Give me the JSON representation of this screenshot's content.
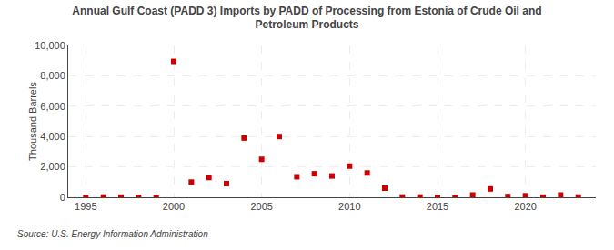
{
  "chart_data": {
    "type": "scatter",
    "title": "Annual Gulf Coast (PADD 3) Imports by PADD of Processing from Estonia of Crude Oil and\nPetroleum Products",
    "ylabel": "Thousand Barrels",
    "source": "Source: U.S. Energy Information Administration",
    "x": [
      1995,
      1996,
      1997,
      1998,
      1999,
      2000,
      2001,
      2002,
      2003,
      2004,
      2005,
      2006,
      2007,
      2008,
      2009,
      2010,
      2011,
      2012,
      2013,
      2014,
      2015,
      2016,
      2017,
      2018,
      2019,
      2020,
      2021,
      2022,
      2023
    ],
    "values": [
      0,
      20,
      10,
      0,
      0,
      8950,
      1000,
      1300,
      900,
      3900,
      2500,
      4000,
      1350,
      1550,
      1400,
      2050,
      1600,
      600,
      20,
      20,
      0,
      0,
      150,
      550,
      50,
      100,
      10,
      150,
      20
    ],
    "color": "#cc0000",
    "marker": "square",
    "xlim": [
      1994,
      2024
    ],
    "xticks": [
      1995,
      2000,
      2005,
      2010,
      2015,
      2020
    ],
    "ylim": [
      0,
      10000
    ],
    "yticks": [
      0,
      {
        "value": 2000,
        "label": "2,000"
      },
      {
        "value": 4000,
        "label": "4,000"
      },
      {
        "value": 6000,
        "label": "6,000"
      },
      {
        "value": 8000,
        "label": "8,000"
      },
      {
        "value": 10000,
        "label": "10,000"
      }
    ],
    "grid": true
  }
}
